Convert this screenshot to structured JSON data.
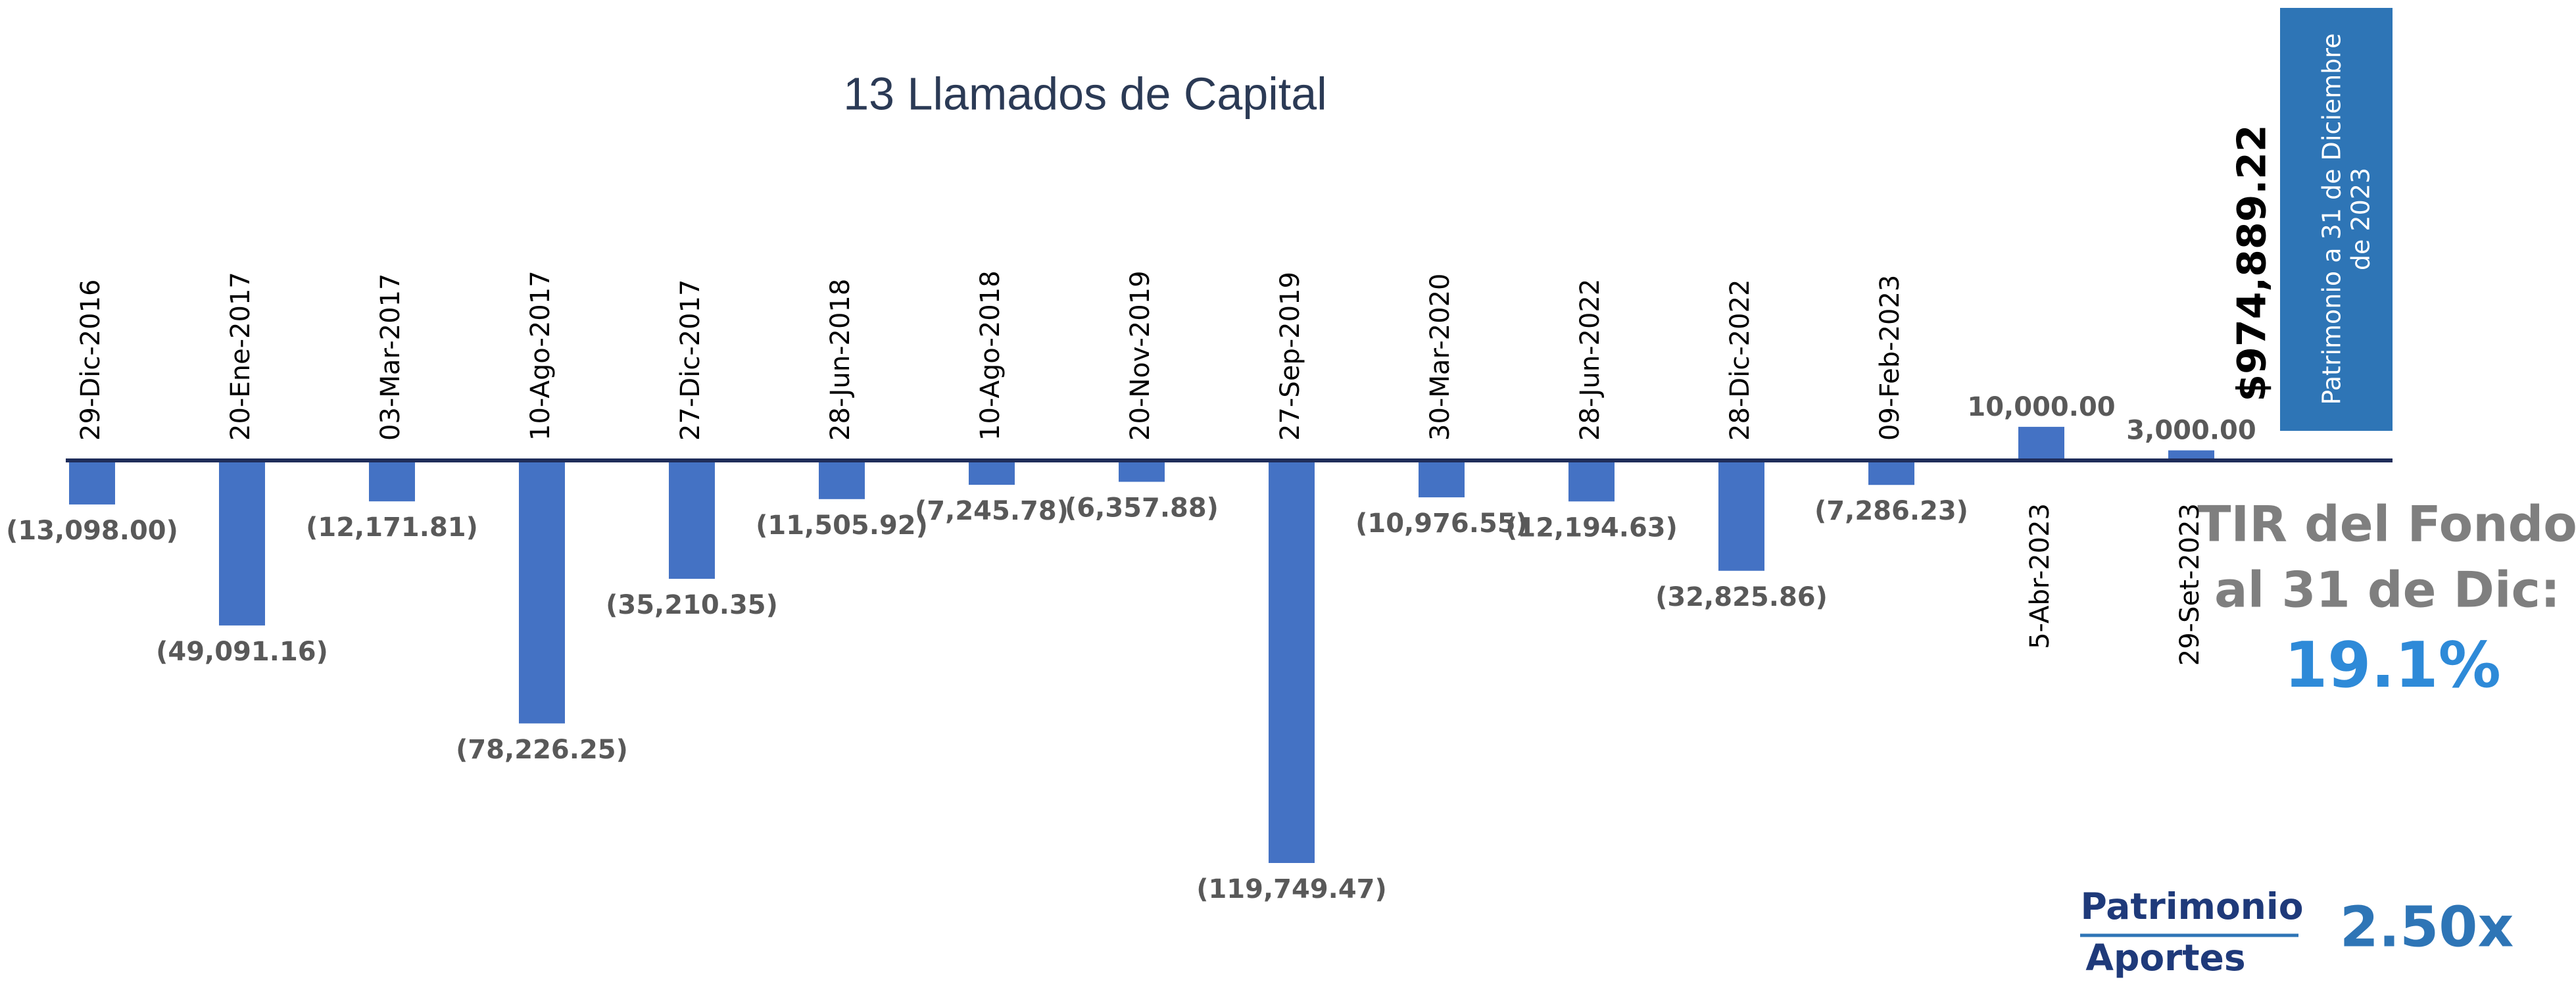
{
  "chart_data": {
    "type": "bar",
    "title": "13 Llamados de Capital",
    "categories": [
      "29-Dic-2016",
      "20-Ene-2017",
      "03-Mar-2017",
      "10-Ago-2017",
      "27-Dic-2017",
      "28-Jun-2018",
      "10-Ago-2018",
      "20-Nov-2019",
      "27-Sep-2019",
      "30-Mar-2020",
      "28-Jun-2022",
      "28-Dic-2022",
      "09-Feb-2023",
      "5-Abr-2023",
      "29-Set-2023"
    ],
    "values": [
      -13098.0,
      -49091.16,
      -12171.81,
      -78226.25,
      -35210.35,
      -11505.92,
      -7245.78,
      -6357.88,
      -119749.47,
      -10976.55,
      -12194.63,
      -32825.86,
      -7286.23,
      10000.0,
      3000.0
    ],
    "value_labels": [
      "(13,098.00)",
      "(49,091.16)",
      "(12,171.81)",
      "(78,226.25)",
      "(35,210.35)",
      "(11,505.92)",
      "(7,245.78)",
      "(6,357.88)",
      "(119,749.47)",
      "(10,976.55)",
      "(12,194.63)",
      "(32,825.86)",
      "(7,286.23)",
      "10,000.00",
      "3,000.00"
    ],
    "color": "#4472c4",
    "equity": {
      "value_label": "$974,889.22",
      "label_lines": [
        "Patrimonio a 31 de Diciembre",
        "de 2023"
      ]
    },
    "irr": {
      "label_lines": [
        "TIR del Fondo",
        "al 31 de Dic:"
      ],
      "value_label": "19.1%"
    },
    "multiple": {
      "numerator": "Patrimonio",
      "denominator": "Aportes",
      "value_label": "2.50x"
    }
  }
}
